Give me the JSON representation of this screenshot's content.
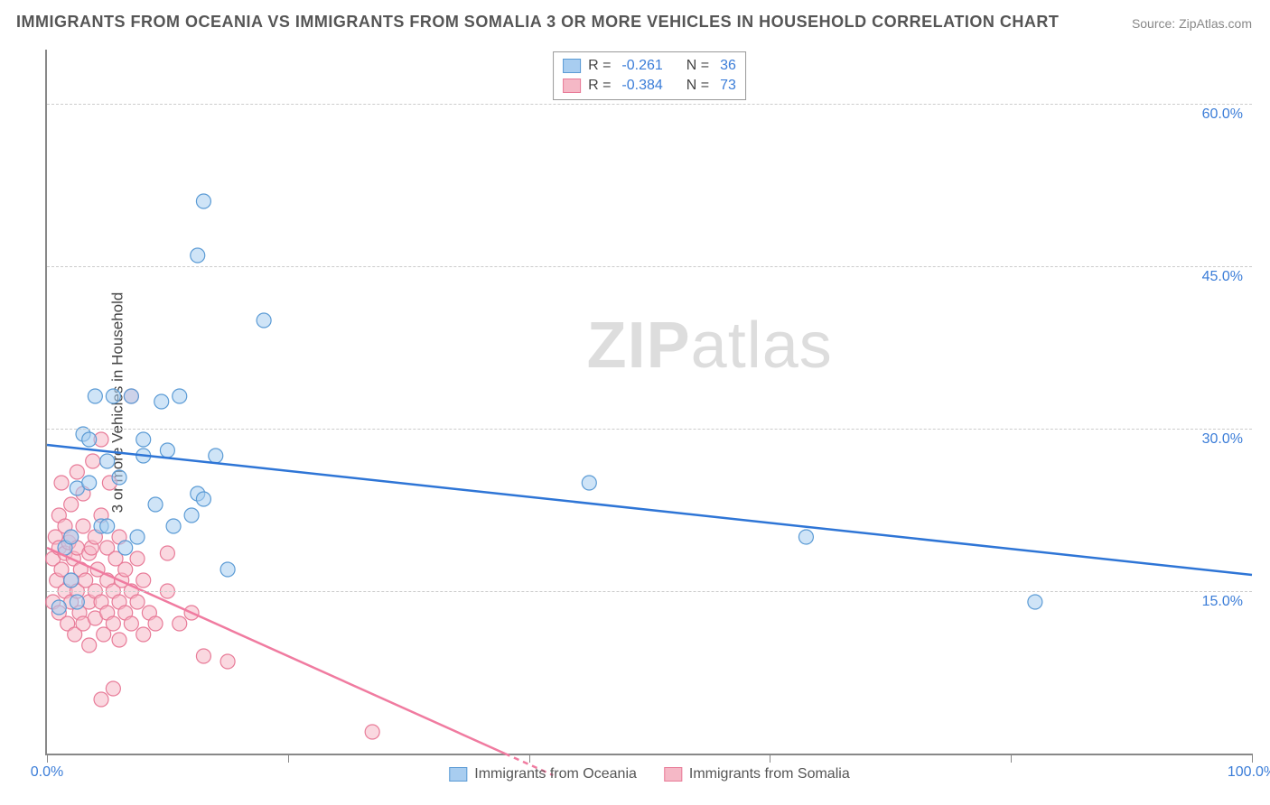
{
  "title": "IMMIGRANTS FROM OCEANIA VS IMMIGRANTS FROM SOMALIA 3 OR MORE VEHICLES IN HOUSEHOLD CORRELATION CHART",
  "source": "Source: ZipAtlas.com",
  "ylabel": "3 or more Vehicles in Household",
  "watermark_bold": "ZIP",
  "watermark_light": "atlas",
  "chart": {
    "type": "scatter",
    "background_color": "#ffffff",
    "grid_color": "#cccccc",
    "axis_color": "#888888",
    "tick_label_color": "#3b7dd8",
    "xlim": [
      0,
      100
    ],
    "ylim": [
      0,
      65
    ],
    "y_ticks": [
      15,
      30,
      45,
      60
    ],
    "y_tick_labels": [
      "15.0%",
      "30.0%",
      "45.0%",
      "60.0%"
    ],
    "x_tick_positions": [
      0,
      20,
      40,
      60,
      80,
      100
    ],
    "x_tick_labels_shown": {
      "0": "0.0%",
      "100": "100.0%"
    },
    "marker_radius": 8,
    "series": [
      {
        "name": "Immigrants from Oceania",
        "fill_color": "#a8cdf0",
        "stroke_color": "#5b9bd5",
        "fill_opacity": 0.55,
        "line_color": "#2e75d6",
        "line_width": 2.5,
        "R": "-0.261",
        "N": "36",
        "regression": {
          "x1": 0,
          "y1": 28.5,
          "x2": 100,
          "y2": 16.5
        },
        "points": [
          [
            1,
            13.5
          ],
          [
            1.5,
            19
          ],
          [
            2,
            16
          ],
          [
            2,
            20
          ],
          [
            2.5,
            14
          ],
          [
            2.5,
            24.5
          ],
          [
            3,
            29.5
          ],
          [
            3.5,
            25
          ],
          [
            3.5,
            29
          ],
          [
            4,
            33
          ],
          [
            4.5,
            21
          ],
          [
            5,
            27
          ],
          [
            5,
            21
          ],
          [
            5.5,
            33
          ],
          [
            6,
            25.5
          ],
          [
            6.5,
            19
          ],
          [
            7,
            33
          ],
          [
            7.5,
            20
          ],
          [
            8,
            27.5
          ],
          [
            8,
            29
          ],
          [
            9,
            23
          ],
          [
            9.5,
            32.5
          ],
          [
            10,
            28
          ],
          [
            10.5,
            21
          ],
          [
            11,
            33
          ],
          [
            12,
            22
          ],
          [
            12.5,
            24
          ],
          [
            13,
            23.5
          ],
          [
            14,
            27.5
          ],
          [
            15,
            17
          ],
          [
            18,
            40
          ],
          [
            45,
            25
          ],
          [
            63,
            20
          ],
          [
            82,
            14
          ],
          [
            13,
            51
          ],
          [
            12.5,
            46
          ]
        ]
      },
      {
        "name": "Immigrants from Somalia",
        "fill_color": "#f5b8c6",
        "stroke_color": "#e87b98",
        "fill_opacity": 0.55,
        "line_color": "#f07ba0",
        "line_width": 2.5,
        "R": "-0.384",
        "N": "73",
        "regression": {
          "x1": 0,
          "y1": 19,
          "x2": 38,
          "y2": 0
        },
        "regression_dashed_extension": {
          "x1": 38,
          "y1": 0,
          "x2": 42,
          "y2": -2
        },
        "points": [
          [
            0.5,
            18
          ],
          [
            0.5,
            14
          ],
          [
            0.7,
            20
          ],
          [
            0.8,
            16
          ],
          [
            1,
            19
          ],
          [
            1,
            22
          ],
          [
            1,
            13
          ],
          [
            1.2,
            17
          ],
          [
            1.2,
            25
          ],
          [
            1.5,
            15
          ],
          [
            1.5,
            18.5
          ],
          [
            1.5,
            21
          ],
          [
            1.7,
            12
          ],
          [
            1.8,
            19.5
          ],
          [
            2,
            16
          ],
          [
            2,
            20
          ],
          [
            2,
            14
          ],
          [
            2,
            23
          ],
          [
            2.2,
            18
          ],
          [
            2.3,
            11
          ],
          [
            2.5,
            26
          ],
          [
            2.5,
            15
          ],
          [
            2.5,
            19
          ],
          [
            2.7,
            13
          ],
          [
            2.8,
            17
          ],
          [
            3,
            21
          ],
          [
            3,
            12
          ],
          [
            3,
            24
          ],
          [
            3.2,
            16
          ],
          [
            3.5,
            18.5
          ],
          [
            3.5,
            14
          ],
          [
            3.5,
            10
          ],
          [
            3.7,
            19
          ],
          [
            3.8,
            27
          ],
          [
            4,
            15
          ],
          [
            4,
            20
          ],
          [
            4,
            12.5
          ],
          [
            4.2,
            17
          ],
          [
            4.5,
            29
          ],
          [
            4.5,
            14
          ],
          [
            4.5,
            22
          ],
          [
            4.7,
            11
          ],
          [
            5,
            16
          ],
          [
            5,
            19
          ],
          [
            5,
            13
          ],
          [
            5.2,
            25
          ],
          [
            5.5,
            15
          ],
          [
            5.5,
            12
          ],
          [
            5.7,
            18
          ],
          [
            6,
            14
          ],
          [
            6,
            10.5
          ],
          [
            6,
            20
          ],
          [
            6.2,
            16
          ],
          [
            6.5,
            13
          ],
          [
            6.5,
            17
          ],
          [
            7,
            12
          ],
          [
            7,
            15
          ],
          [
            7,
            33
          ],
          [
            7.5,
            14
          ],
          [
            7.5,
            18
          ],
          [
            8,
            11
          ],
          [
            8,
            16
          ],
          [
            8.5,
            13
          ],
          [
            9,
            12
          ],
          [
            10,
            18.5
          ],
          [
            10,
            15
          ],
          [
            11,
            12
          ],
          [
            12,
            13
          ],
          [
            13,
            9
          ],
          [
            15,
            8.5
          ],
          [
            4.5,
            5
          ],
          [
            5.5,
            6
          ],
          [
            27,
            2
          ]
        ]
      }
    ],
    "legend_top_labels": {
      "R": "R =",
      "N": "N ="
    },
    "legend_bottom_labels": [
      "Immigrants from Oceania",
      "Immigrants from Somalia"
    ]
  }
}
